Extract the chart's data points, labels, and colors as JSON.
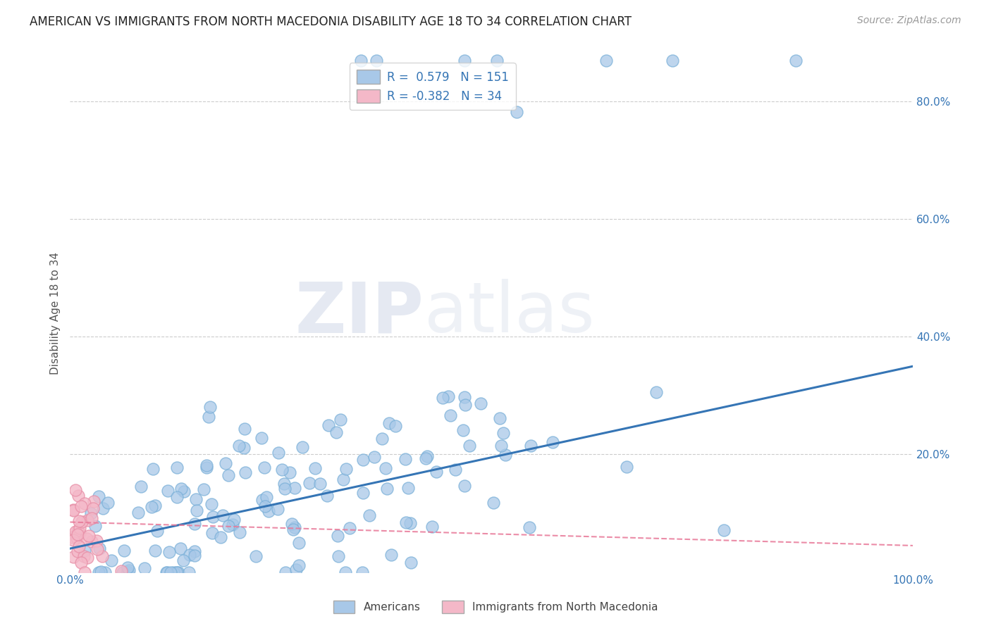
{
  "title": "AMERICAN VS IMMIGRANTS FROM NORTH MACEDONIA DISABILITY AGE 18 TO 34 CORRELATION CHART",
  "source": "Source: ZipAtlas.com",
  "ylabel": "Disability Age 18 to 34",
  "xlim": [
    0.0,
    1.0
  ],
  "ylim": [
    0.0,
    0.88
  ],
  "y_tick_labels": [
    "20.0%",
    "40.0%",
    "60.0%",
    "80.0%"
  ],
  "y_tick_values": [
    0.2,
    0.4,
    0.6,
    0.8
  ],
  "background_color": "#ffffff",
  "grid_color": "#cccccc",
  "watermark_zip": "ZIP",
  "watermark_atlas": "atlas",
  "blue_color": "#a8c8e8",
  "blue_edge_color": "#7ab0d8",
  "pink_color": "#f4b8c8",
  "pink_edge_color": "#e890a8",
  "blue_line_color": "#3575b5",
  "pink_line_color": "#e87898",
  "americans_N": 151,
  "immigrants_N": 34,
  "title_fontsize": 12,
  "axis_label_fontsize": 11,
  "tick_fontsize": 11,
  "legend_label_color": "#3575b5"
}
